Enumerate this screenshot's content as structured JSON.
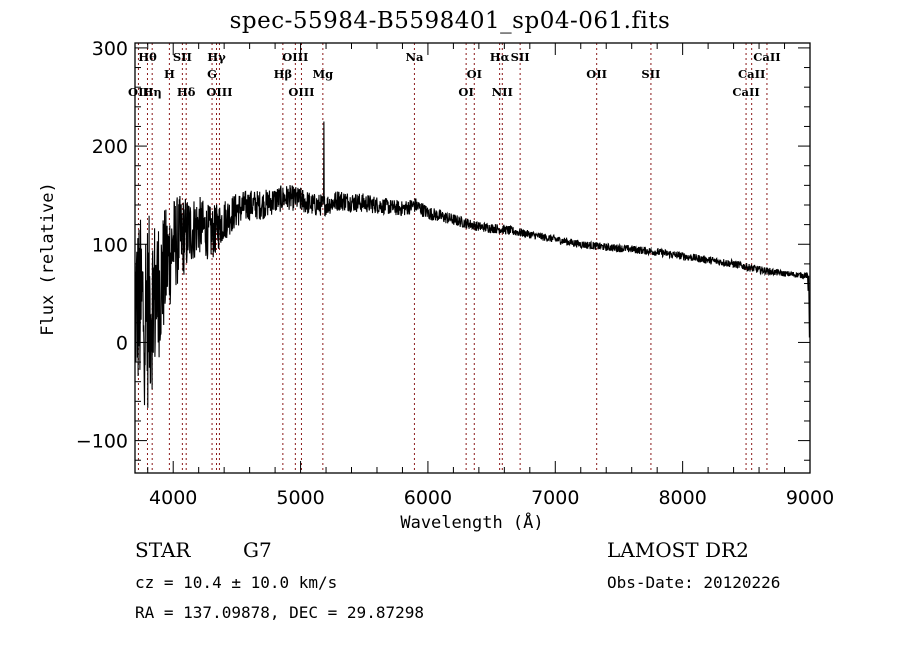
{
  "chart_data": {
    "type": "line",
    "title": "spec-55984-B5598401_sp04-061.fits",
    "xlabel": "Wavelength (Å)",
    "ylabel": "Flux (relative)",
    "xlim": [
      3700,
      9000
    ],
    "ylim": [
      -133,
      305
    ],
    "xticks": [
      4000,
      5000,
      6000,
      7000,
      8000,
      9000
    ],
    "yticks": [
      -100,
      0,
      100,
      200,
      300
    ],
    "grid": false,
    "series_color": "#000000",
    "line_marker_color": "#8b1a1a",
    "spectrum_envelope": {
      "description": "approximate continuum of the noisy spectrum",
      "x": [
        3700,
        3800,
        3900,
        4000,
        4100,
        4200,
        4300,
        4400,
        4500,
        4600,
        4700,
        4800,
        4900,
        5000,
        5100,
        5200,
        5300,
        5400,
        5500,
        5600,
        5700,
        5800,
        5900,
        6000,
        6200,
        6400,
        6600,
        6800,
        7000,
        7200,
        7400,
        7600,
        7800,
        8000,
        8200,
        8400,
        8600,
        8800,
        8980,
        9000
      ],
      "y": [
        40,
        30,
        60,
        100,
        110,
        120,
        110,
        125,
        135,
        140,
        140,
        145,
        148,
        145,
        140,
        140,
        145,
        143,
        142,
        140,
        138,
        136,
        140,
        132,
        125,
        118,
        115,
        110,
        105,
        100,
        97,
        95,
        92,
        88,
        84,
        80,
        74,
        70,
        68,
        5
      ],
      "noise": [
        90,
        100,
        70,
        50,
        40,
        30,
        28,
        22,
        18,
        16,
        15,
        14,
        13,
        13,
        12,
        11,
        11,
        10,
        10,
        9,
        8,
        8,
        8,
        7,
        6,
        5,
        5,
        4,
        4,
        4,
        4,
        4,
        4,
        4,
        4,
        4,
        4,
        3,
        3,
        0
      ]
    },
    "features": [
      {
        "x": 5183,
        "y": 225,
        "note": "spike near Mg"
      }
    ],
    "spectral_lines": [
      {
        "label": "Hθ",
        "wavelength": 3798,
        "row": 0
      },
      {
        "label": "OII",
        "wavelength": 3727,
        "row": 2
      },
      {
        "label": "Hη",
        "wavelength": 3835,
        "row": 2
      },
      {
        "label": "H",
        "wavelength": 3970,
        "row": 1
      },
      {
        "label": "SII",
        "wavelength": 4072,
        "row": 0
      },
      {
        "label": "Hδ",
        "wavelength": 4102,
        "row": 2
      },
      {
        "label": "Hγ",
        "wavelength": 4340,
        "row": 0
      },
      {
        "label": "G",
        "wavelength": 4305,
        "row": 1
      },
      {
        "label": "OIII",
        "wavelength": 4363,
        "row": 2
      },
      {
        "label": "OIII",
        "wavelength": 4959,
        "row": 0
      },
      {
        "label": "Hβ",
        "wavelength": 4861,
        "row": 1
      },
      {
        "label": "OIII",
        "wavelength": 5007,
        "row": 2
      },
      {
        "label": "Mg",
        "wavelength": 5175,
        "row": 1
      },
      {
        "label": "Na",
        "wavelength": 5894,
        "row": 0
      },
      {
        "label": "OI",
        "wavelength": 6364,
        "row": 1
      },
      {
        "label": "OI",
        "wavelength": 6300,
        "row": 2
      },
      {
        "label": "Hα",
        "wavelength": 6563,
        "row": 0
      },
      {
        "label": "SII",
        "wavelength": 6724,
        "row": 0
      },
      {
        "label": "NII",
        "wavelength": 6584,
        "row": 2
      },
      {
        "label": "OII",
        "wavelength": 7325,
        "row": 1
      },
      {
        "label": "SII",
        "wavelength": 7751,
        "row": 1
      },
      {
        "label": "CaII",
        "wavelength": 8662,
        "row": 0
      },
      {
        "label": "CaII",
        "wavelength": 8542,
        "row": 1
      },
      {
        "label": "CaII",
        "wavelength": 8498,
        "row": 2
      }
    ]
  },
  "info": {
    "object_type": "STAR",
    "object_class": "G7",
    "cz": "cz = 10.4 ± 10.0 km/s",
    "radec": "RA = 137.09878, DEC =  29.87298",
    "survey": "LAMOST DR2",
    "obs_date": "Obs-Date: 20120226"
  }
}
